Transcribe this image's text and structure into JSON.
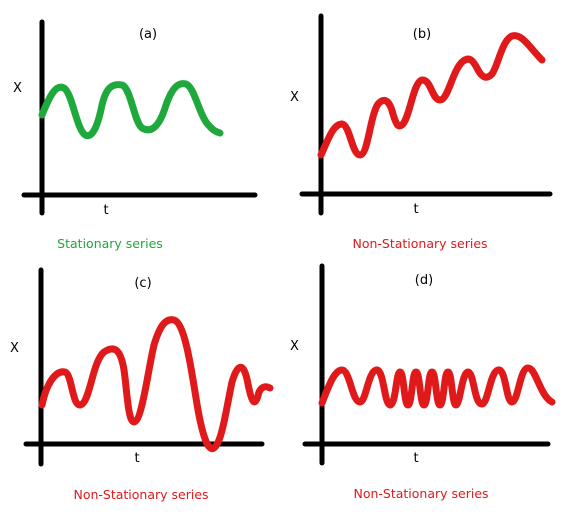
{
  "colors": {
    "axis": "#000000",
    "stationary": "#1fa83c",
    "non_stationary": "#e0191b"
  },
  "panels": [
    {
      "tag": "(a)",
      "y_label": "X",
      "x_label": "t",
      "caption": "Stationary series",
      "color_key": "stationary"
    },
    {
      "tag": "(b)",
      "y_label": "X",
      "x_label": "t",
      "caption": "Non-Stationary series",
      "color_key": "non_stationary"
    },
    {
      "tag": "(c)",
      "y_label": "X",
      "x_label": "t",
      "caption": "Non-Stationary series",
      "color_key": "non_stationary"
    },
    {
      "tag": "(d)",
      "y_label": "X",
      "x_label": "t",
      "caption": "Non-Stationary series",
      "color_key": "non_stationary"
    }
  ]
}
